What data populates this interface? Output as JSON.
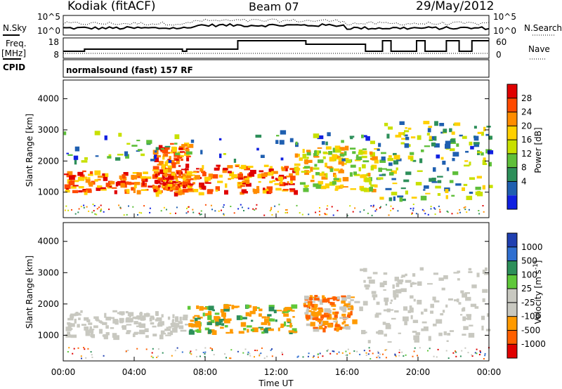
{
  "header": {
    "station": "Kodiak (fitACF)",
    "beam": "Beam 07",
    "date": "29/May/2012"
  },
  "summary": {
    "nsky_label": "N.Sky",
    "nsky_ticks": [
      "10^5",
      "10^0"
    ],
    "nsearch_label": "N.Search",
    "nsearch_ticks": [
      "10^5",
      "10^0"
    ],
    "freq_label": "Freq.",
    "freq_unit": "[MHz]",
    "freq_ticks": [
      "18",
      "8"
    ],
    "nave_label": "Nave",
    "nave_ticks": [
      "60",
      "0"
    ],
    "cpid_label": "CPID",
    "cpid_text": "normalsound (fast) 157 RF"
  },
  "chart_data": [
    {
      "type": "heatmap",
      "name": "power",
      "ylabel": "Slant Range [km]",
      "xlabel": "",
      "yticks": [
        "4000",
        "3000",
        "2000",
        "1000"
      ],
      "ylim": [
        180,
        4600
      ],
      "xlim": [
        0,
        24
      ],
      "colorbar": {
        "label": "Power [dB]",
        "ticks": [
          "28",
          "24",
          "20",
          "16",
          "12",
          "8",
          "4"
        ],
        "colors": [
          "#e00000",
          "#ff4a00",
          "#ff8c00",
          "#ffd000",
          "#c8e000",
          "#5fbf3a",
          "#2d8f5a",
          "#1f5fb0",
          "#1020e0"
        ]
      },
      "bands": [
        {
          "t0": 0.0,
          "t1": 7.0,
          "r0": 1050,
          "r1": 1700,
          "level": "strong"
        },
        {
          "t0": 5.0,
          "t1": 7.0,
          "r0": 1000,
          "r1": 2600,
          "level": "strong"
        },
        {
          "t0": 7.0,
          "t1": 13.0,
          "r0": 1000,
          "r1": 1900,
          "level": "strong"
        },
        {
          "t0": 13.0,
          "t1": 17.5,
          "r0": 1100,
          "r1": 2500,
          "level": "medium"
        },
        {
          "t0": 17.5,
          "t1": 24.0,
          "r0": 700,
          "r1": 3300,
          "level": "weak"
        },
        {
          "t0": 0.0,
          "t1": 24.0,
          "r0": 2000,
          "r1": 3000,
          "level": "scatter"
        }
      ]
    },
    {
      "type": "heatmap",
      "name": "velocity",
      "ylabel": "Slant Range [km]",
      "xlabel": "Time UT",
      "yticks": [
        "4000",
        "3000",
        "2000",
        "1000"
      ],
      "ylim": [
        180,
        4600
      ],
      "xlim": [
        0,
        24
      ],
      "colorbar": {
        "label": "Velocity [m s",
        "label_sup": "-1",
        "label_end": "]",
        "ticks": [
          "1000",
          "500",
          "100",
          "25",
          "-25",
          "-100",
          "-500",
          "-1000"
        ],
        "colors": [
          "#1f3fb0",
          "#2f6fd0",
          "#2d8f5a",
          "#5fc83a",
          "#c8c8c0",
          "#c8c8c0",
          "#ff9a00",
          "#ff6000",
          "#e00000"
        ]
      },
      "bands": [
        {
          "t0": 0.0,
          "t1": 7.0,
          "r0": 1000,
          "r1": 1800,
          "level": "gray"
        },
        {
          "t0": 7.0,
          "t1": 13.0,
          "r0": 1100,
          "r1": 2000,
          "level": "toward-low"
        },
        {
          "t0": 13.5,
          "t1": 16.5,
          "r0": 1200,
          "r1": 2300,
          "level": "away"
        },
        {
          "t0": 16.5,
          "t1": 24.0,
          "r0": 800,
          "r1": 3200,
          "level": "gray"
        }
      ]
    }
  ],
  "xaxis": {
    "ticks": [
      "00:00",
      "04:00",
      "08:00",
      "12:00",
      "16:00",
      "20:00",
      "00:00"
    ],
    "label": "Time UT"
  }
}
